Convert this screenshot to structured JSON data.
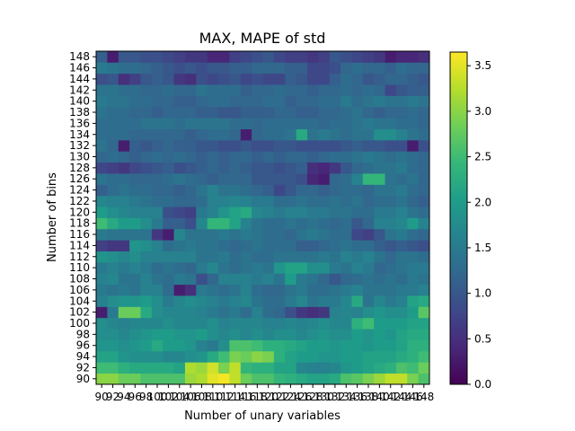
{
  "chart_data": {
    "type": "heatmap",
    "title": "MAX, MAPE of std",
    "xlabel": "Number of unary variables",
    "ylabel": "Number of bins",
    "x_ticks": [
      "90",
      "92",
      "94",
      "96",
      "98",
      "100",
      "102",
      "104",
      "106",
      "108",
      "110",
      "112",
      "114",
      "116",
      "118",
      "120",
      "122",
      "124",
      "126",
      "128",
      "130",
      "132",
      "134",
      "136",
      "138",
      "140",
      "142",
      "144",
      "146",
      "148"
    ],
    "y_ticks": [
      "90",
      "92",
      "94",
      "96",
      "98",
      "100",
      "102",
      "104",
      "106",
      "108",
      "110",
      "112",
      "114",
      "116",
      "118",
      "120",
      "122",
      "124",
      "126",
      "128",
      "130",
      "132",
      "134",
      "136",
      "138",
      "140",
      "142",
      "144",
      "146",
      "148"
    ],
    "colorscale": "viridis",
    "colorbar": {
      "min": 0.0,
      "max": 3.65,
      "ticks": [
        "0.0",
        "0.5",
        "1.0",
        "1.5",
        "2.0",
        "2.5",
        "3.0",
        "3.5"
      ]
    },
    "grid": false,
    "value_note": "approximate values read from color",
    "values": [
      [
        3.0,
        3.0,
        2.8,
        2.8,
        2.6,
        2.6,
        2.6,
        2.6,
        3.1,
        3.2,
        3.5,
        3.6,
        3.3,
        2.8,
        2.6,
        2.6,
        2.4,
        2.3,
        2.2,
        2.1,
        2.1,
        2.2,
        2.6,
        2.7,
        2.9,
        3.1,
        3.3,
        3.3,
        2.9,
        2.6
      ],
      [
        2.5,
        2.5,
        2.3,
        2.2,
        2.2,
        2.2,
        2.2,
        2.1,
        3.2,
        3.1,
        3.4,
        2.9,
        3.3,
        2.4,
        2.3,
        2.3,
        2.1,
        2.1,
        1.7,
        1.6,
        1.6,
        1.7,
        1.9,
        2.0,
        2.1,
        2.2,
        2.3,
        2.6,
        2.5,
        2.8
      ],
      [
        2.1,
        2.1,
        1.9,
        1.8,
        1.8,
        1.8,
        1.7,
        1.7,
        1.8,
        1.9,
        2.2,
        2.5,
        2.9,
        2.8,
        3.0,
        2.9,
        2.3,
        2.1,
        2.0,
        2.0,
        1.9,
        1.9,
        2.0,
        2.0,
        2.1,
        2.1,
        2.1,
        2.2,
        2.3,
        2.5
      ],
      [
        1.9,
        1.9,
        1.8,
        1.9,
        2.0,
        2.2,
        2.0,
        2.0,
        1.9,
        1.6,
        1.5,
        1.8,
        2.6,
        2.6,
        2.5,
        2.3,
        2.3,
        2.2,
        2.1,
        2.0,
        2.0,
        1.9,
        2.0,
        2.0,
        1.9,
        2.0,
        2.0,
        2.1,
        2.3,
        2.3
      ],
      [
        1.8,
        1.8,
        1.7,
        1.8,
        1.9,
        2.0,
        2.0,
        1.9,
        1.9,
        2.0,
        1.8,
        1.7,
        1.8,
        1.7,
        1.8,
        1.7,
        1.8,
        1.8,
        1.7,
        1.8,
        1.9,
        1.8,
        1.8,
        2.0,
        1.9,
        2.0,
        1.9,
        2.1,
        2.2,
        2.2
      ],
      [
        1.8,
        1.7,
        1.6,
        1.7,
        1.7,
        1.7,
        1.8,
        1.7,
        1.7,
        1.7,
        1.8,
        1.6,
        1.7,
        1.7,
        1.7,
        1.6,
        1.6,
        1.7,
        1.6,
        1.7,
        1.8,
        1.7,
        1.7,
        2.3,
        2.5,
        2.0,
        2.0,
        2.0,
        2.1,
        2.1
      ],
      [
        0.3,
        1.5,
        2.8,
        2.8,
        2.2,
        1.8,
        1.7,
        1.7,
        1.7,
        1.6,
        1.5,
        1.4,
        1.5,
        1.3,
        1.6,
        1.3,
        1.2,
        0.9,
        0.6,
        0.5,
        0.6,
        1.6,
        1.7,
        1.6,
        1.8,
        1.9,
        1.8,
        1.8,
        2.0,
        2.7
      ],
      [
        1.6,
        1.8,
        1.9,
        1.9,
        2.0,
        1.8,
        1.5,
        1.7,
        1.8,
        1.7,
        1.6,
        1.5,
        1.6,
        1.7,
        1.4,
        1.3,
        1.3,
        1.5,
        1.7,
        1.4,
        1.5,
        1.5,
        1.7,
        2.2,
        1.4,
        1.7,
        1.5,
        1.6,
        2.1,
        2.2
      ],
      [
        1.5,
        1.4,
        1.5,
        1.4,
        1.6,
        1.6,
        1.3,
        0.3,
        0.5,
        1.5,
        1.4,
        1.3,
        1.4,
        1.6,
        1.3,
        1.2,
        1.2,
        1.4,
        1.5,
        1.3,
        1.3,
        1.4,
        1.5,
        1.6,
        1.4,
        1.4,
        1.4,
        1.5,
        1.5,
        1.6
      ],
      [
        1.6,
        1.7,
        1.4,
        1.4,
        1.6,
        1.4,
        1.3,
        1.5,
        1.4,
        0.9,
        1.2,
        1.6,
        1.6,
        1.6,
        1.5,
        1.6,
        1.4,
        2.0,
        1.5,
        1.4,
        1.2,
        1.0,
        1.2,
        1.3,
        1.4,
        1.3,
        1.4,
        1.3,
        1.5,
        1.4
      ],
      [
        1.5,
        1.6,
        1.5,
        1.6,
        1.5,
        1.3,
        1.4,
        1.3,
        1.2,
        1.5,
        1.7,
        1.4,
        1.3,
        1.4,
        1.5,
        1.4,
        1.9,
        2.1,
        2.1,
        1.8,
        1.8,
        1.5,
        1.4,
        1.6,
        1.5,
        1.2,
        1.3,
        1.4,
        1.5,
        1.5
      ],
      [
        1.9,
        1.8,
        1.7,
        1.8,
        1.6,
        1.6,
        1.6,
        1.6,
        1.6,
        1.4,
        1.4,
        1.5,
        1.3,
        1.4,
        1.3,
        1.3,
        1.4,
        1.4,
        1.4,
        1.4,
        1.5,
        1.4,
        1.6,
        1.5,
        1.6,
        1.4,
        1.2,
        1.4,
        1.4,
        1.3
      ],
      [
        0.7,
        0.6,
        0.6,
        1.9,
        1.8,
        1.6,
        1.3,
        1.4,
        1.5,
        1.4,
        1.4,
        1.3,
        1.2,
        1.3,
        1.4,
        1.3,
        1.3,
        1.3,
        1.1,
        1.1,
        1.2,
        1.3,
        1.4,
        1.3,
        1.3,
        1.1,
        1.0,
        1.1,
        1.0,
        0.9
      ],
      [
        1.5,
        1.4,
        1.4,
        1.4,
        1.4,
        0.6,
        0.3,
        1.7,
        1.4,
        1.4,
        1.4,
        1.5,
        1.4,
        1.5,
        1.4,
        1.3,
        1.3,
        1.2,
        1.4,
        1.5,
        1.4,
        1.3,
        1.3,
        0.8,
        0.7,
        1.0,
        1.4,
        1.5,
        1.3,
        1.2
      ],
      [
        2.5,
        2.2,
        2.0,
        2.0,
        1.8,
        1.5,
        1.1,
        1.1,
        0.9,
        1.7,
        2.4,
        2.4,
        2.1,
        1.6,
        1.4,
        1.3,
        1.3,
        1.4,
        1.3,
        1.4,
        1.3,
        1.2,
        1.3,
        1.0,
        1.2,
        1.6,
        1.6,
        1.7,
        2.0,
        1.6
      ],
      [
        2.0,
        1.8,
        1.7,
        1.6,
        1.6,
        1.6,
        0.9,
        0.8,
        0.7,
        1.5,
        1.6,
        1.9,
        2.1,
        2.2,
        1.7,
        1.6,
        1.5,
        1.6,
        1.6,
        1.5,
        1.5,
        1.4,
        1.4,
        1.3,
        1.3,
        1.5,
        1.5,
        1.6,
        1.4,
        1.3
      ],
      [
        1.7,
        1.6,
        1.6,
        1.5,
        1.4,
        1.3,
        1.3,
        1.2,
        1.2,
        1.3,
        1.6,
        1.6,
        1.7,
        1.6,
        1.5,
        1.5,
        1.3,
        1.3,
        1.4,
        1.3,
        1.3,
        1.4,
        1.3,
        1.4,
        1.2,
        1.3,
        1.3,
        1.4,
        1.2,
        1.1
      ],
      [
        1.1,
        1.3,
        1.4,
        1.3,
        1.3,
        1.2,
        1.2,
        1.1,
        1.2,
        1.4,
        1.6,
        1.4,
        1.4,
        1.3,
        1.2,
        1.1,
        0.8,
        1.0,
        1.2,
        1.2,
        1.1,
        1.2,
        1.3,
        1.3,
        1.2,
        1.4,
        1.4,
        1.5,
        1.3,
        1.2
      ],
      [
        1.4,
        1.3,
        1.3,
        1.2,
        1.2,
        1.2,
        1.3,
        1.4,
        1.3,
        1.2,
        1.1,
        1.2,
        1.2,
        1.2,
        1.0,
        1.0,
        1.0,
        1.0,
        0.9,
        0.4,
        0.3,
        1.2,
        1.3,
        1.6,
        2.4,
        2.4,
        1.4,
        1.3,
        1.4,
        1.2
      ],
      [
        0.8,
        0.7,
        0.6,
        0.8,
        0.9,
        1.0,
        1.1,
        0.9,
        1.0,
        1.1,
        1.2,
        1.1,
        1.2,
        1.1,
        1.0,
        1.0,
        0.9,
        1.0,
        1.1,
        0.5,
        0.4,
        0.6,
        1.0,
        1.2,
        1.3,
        1.4,
        1.4,
        1.5,
        1.3,
        1.2
      ],
      [
        1.2,
        1.3,
        1.2,
        1.1,
        1.2,
        1.3,
        1.2,
        1.3,
        1.2,
        1.1,
        1.2,
        1.1,
        1.2,
        1.2,
        1.1,
        1.2,
        1.1,
        1.2,
        1.2,
        1.1,
        1.2,
        1.3,
        1.3,
        1.4,
        1.5,
        1.4,
        1.3,
        1.4,
        1.3,
        1.2
      ],
      [
        1.4,
        1.2,
        0.3,
        1.1,
        1.0,
        1.1,
        1.2,
        1.1,
        1.1,
        1.0,
        1.0,
        0.9,
        0.9,
        1.0,
        0.9,
        0.9,
        1.0,
        1.0,
        0.9,
        0.9,
        0.9,
        0.9,
        1.0,
        1.1,
        1.0,
        1.0,
        0.9,
        0.9,
        0.3,
        0.9
      ],
      [
        1.3,
        1.3,
        1.3,
        1.2,
        1.2,
        1.2,
        1.2,
        1.2,
        1.1,
        1.2,
        1.3,
        1.3,
        1.2,
        0.3,
        1.2,
        1.3,
        1.3,
        1.4,
        2.2,
        1.4,
        1.5,
        1.4,
        1.3,
        1.4,
        1.4,
        1.8,
        1.8,
        1.6,
        1.4,
        1.3
      ],
      [
        1.3,
        1.3,
        1.3,
        1.3,
        1.4,
        1.4,
        1.4,
        1.3,
        1.4,
        1.4,
        1.4,
        1.4,
        1.3,
        1.3,
        1.2,
        1.3,
        1.3,
        1.3,
        1.3,
        1.3,
        1.2,
        1.3,
        1.3,
        1.4,
        1.5,
        1.4,
        1.4,
        1.3,
        1.3,
        1.2
      ],
      [
        1.4,
        1.3,
        1.3,
        1.2,
        1.2,
        1.1,
        1.2,
        1.2,
        1.2,
        1.1,
        1.1,
        1.0,
        1.0,
        1.1,
        1.1,
        1.1,
        1.2,
        1.2,
        1.1,
        1.1,
        1.2,
        1.2,
        1.3,
        1.4,
        1.2,
        1.1,
        1.2,
        1.2,
        1.3,
        1.2
      ],
      [
        1.5,
        1.4,
        1.4,
        1.3,
        1.3,
        1.2,
        1.2,
        1.1,
        1.1,
        1.2,
        1.3,
        1.3,
        1.2,
        1.2,
        1.2,
        1.3,
        1.3,
        1.1,
        1.2,
        1.2,
        1.3,
        1.3,
        1.5,
        1.3,
        1.4,
        1.5,
        1.4,
        1.4,
        1.5,
        1.4
      ],
      [
        1.4,
        1.4,
        1.3,
        1.3,
        1.2,
        1.2,
        1.3,
        1.2,
        1.2,
        1.4,
        1.3,
        1.3,
        1.3,
        1.1,
        1.2,
        1.2,
        1.3,
        1.2,
        1.2,
        1.1,
        1.2,
        1.2,
        1.3,
        1.2,
        1.3,
        1.2,
        0.8,
        1.0,
        1.1,
        1.1
      ],
      [
        0.9,
        1.0,
        0.5,
        0.7,
        1.0,
        1.1,
        1.0,
        0.6,
        0.5,
        0.9,
        0.8,
        0.9,
        1.0,
        0.8,
        0.9,
        0.8,
        0.8,
        1.1,
        1.0,
        0.8,
        0.8,
        1.1,
        1.3,
        1.2,
        1.0,
        1.1,
        1.2,
        1.2,
        1.1,
        1.0
      ],
      [
        1.5,
        1.4,
        1.3,
        1.3,
        1.2,
        1.1,
        1.0,
        0.9,
        1.0,
        0.9,
        1.0,
        1.0,
        1.1,
        1.1,
        1.2,
        1.2,
        1.2,
        1.1,
        1.1,
        0.8,
        0.8,
        0.9,
        1.2,
        1.3,
        1.2,
        1.2,
        1.1,
        1.3,
        1.2,
        1.2
      ],
      [
        1.1,
        0.3,
        1.0,
        1.0,
        0.9,
        0.9,
        0.8,
        0.7,
        0.6,
        0.6,
        0.4,
        0.4,
        0.7,
        0.8,
        0.9,
        1.0,
        0.8,
        0.7,
        0.7,
        0.6,
        0.7,
        1.0,
        0.9,
        0.8,
        0.7,
        0.6,
        0.3,
        0.4,
        0.4,
        0.5
      ]
    ]
  }
}
